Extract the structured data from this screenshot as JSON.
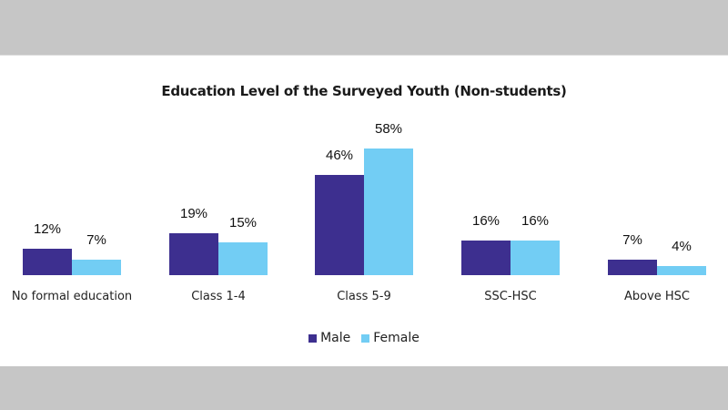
{
  "chart_data": {
    "type": "bar",
    "title": "Education Level of  the Surveyed Youth (Non-students)",
    "categories": [
      "No formal education",
      "Class 1-4",
      "Class 5-9",
      "SSC-HSC",
      "Above HSC"
    ],
    "series": [
      {
        "name": "Male",
        "color": "#3d2f8f",
        "values": [
          12,
          19,
          46,
          16,
          7
        ]
      },
      {
        "name": "Female",
        "color": "#72cdf4",
        "values": [
          7,
          15,
          58,
          16,
          4
        ]
      }
    ],
    "value_labels": {
      "Male": [
        "12%",
        "19%",
        "46%",
        "16%",
        "7%"
      ],
      "Female": [
        "7%",
        "15%",
        "58%",
        "16%",
        "4%"
      ]
    },
    "xlabel": "",
    "ylabel": "",
    "ylim": [
      0,
      60
    ],
    "grid": false,
    "legend_position": "bottom"
  },
  "legend": {
    "male": "Male",
    "female": "Female"
  }
}
